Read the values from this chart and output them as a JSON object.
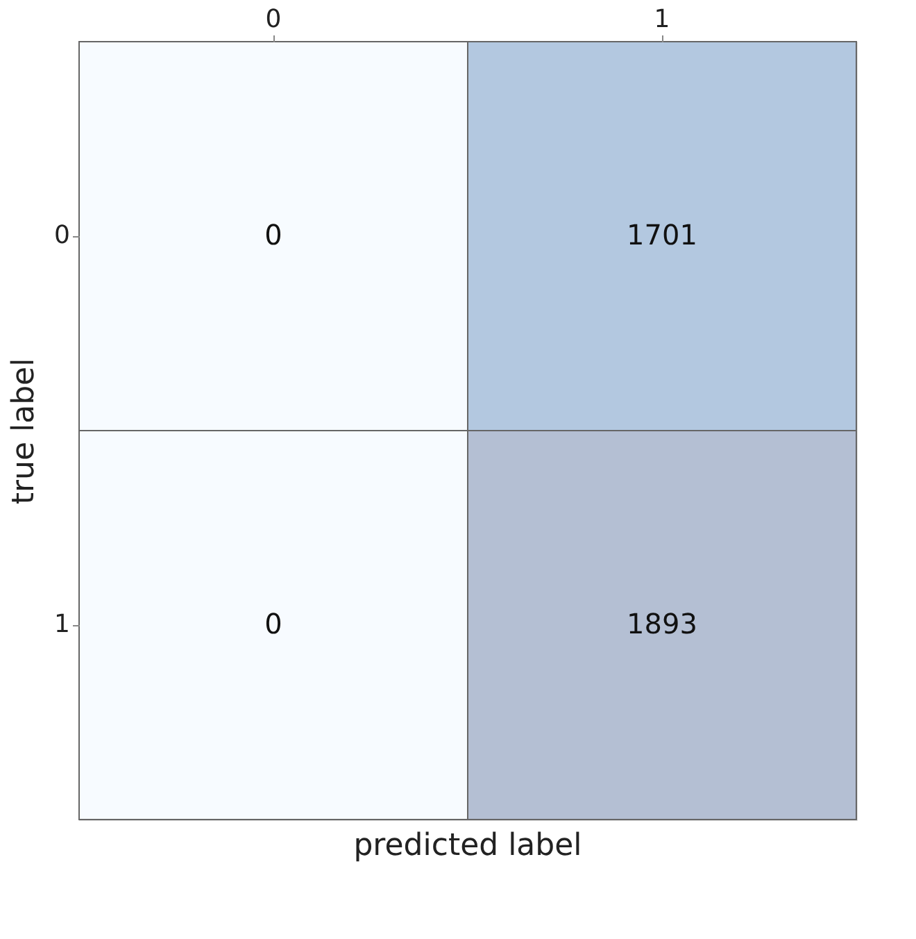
{
  "chart_data": {
    "type": "heatmap",
    "xlabel": "predicted label",
    "ylabel": "true label",
    "categories": [
      "0",
      "1"
    ],
    "y_categories": [
      "0",
      "1"
    ],
    "cells": [
      [
        0,
        1701
      ],
      [
        0,
        1893
      ]
    ],
    "colors": [
      [
        "#f7fbff",
        "#b3c8e0"
      ],
      [
        "#f7fbff",
        "#b4bfd3"
      ]
    ],
    "data_labels": true
  }
}
